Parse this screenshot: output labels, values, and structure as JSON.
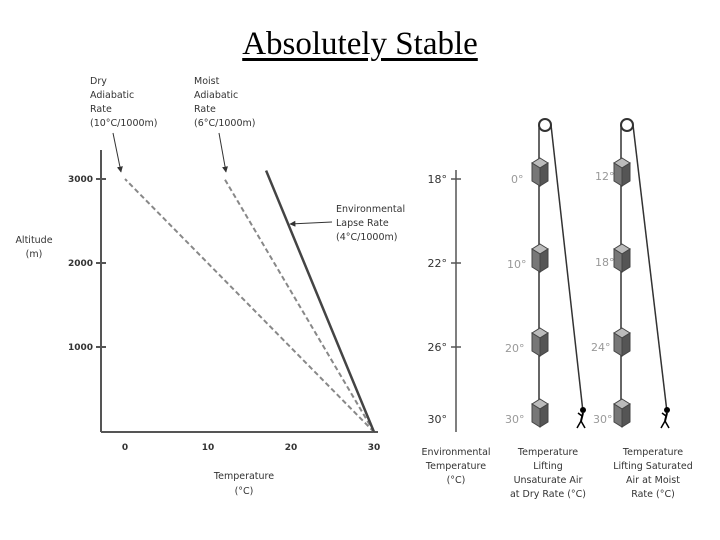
{
  "title": "Absolutely Stable",
  "labels": {
    "dry": [
      "Dry",
      "Adiabatic",
      "Rate",
      "(10°C/1000m)"
    ],
    "moist": [
      "Moist",
      "Adiabatic",
      "Rate",
      "(6°C/1000m)"
    ],
    "env": [
      "Environmental",
      "Lapse Rate",
      "(4°C/1000m)"
    ],
    "altitude": [
      "Altitude",
      "(m)"
    ],
    "temperature": [
      "Temperature",
      "(°C)"
    ],
    "col_env": [
      "Environmental",
      "Temperature",
      "(°C)"
    ],
    "col_dry": [
      "Temperature",
      "Lifting",
      "Unsaturate Air",
      "at Dry Rate (°C)"
    ],
    "col_moist": [
      "Temperature",
      "Lifting Saturated",
      "Air at Moist",
      "Rate (°C)"
    ]
  },
  "axes": {
    "y_ticks": [
      "3000",
      "2000",
      "1000"
    ],
    "x_ticks": [
      "0",
      "10",
      "20",
      "30"
    ]
  },
  "chart_data": {
    "type": "line",
    "xlabel": "Temperature (°C)",
    "ylabel": "Altitude (m)",
    "xlim": [
      -3,
      30
    ],
    "ylim": [
      0,
      3000
    ],
    "series": [
      {
        "name": "Dry Adiabatic Rate (10°C/1000m)",
        "style": "dashed",
        "x": [
          30,
          0
        ],
        "y": [
          0,
          3000
        ]
      },
      {
        "name": "Moist Adiabatic Rate (6°C/1000m)",
        "style": "dashed",
        "x": [
          30,
          12
        ],
        "y": [
          0,
          3000
        ]
      },
      {
        "name": "Environmental Lapse Rate (4°C/1000m)",
        "style": "solid",
        "x": [
          30,
          17
        ],
        "y": [
          0,
          3100
        ]
      }
    ]
  },
  "env_temps": [
    "18°",
    "22°",
    "26°",
    "30°"
  ],
  "dry_temps": [
    "0°",
    "10°",
    "20°",
    "30°"
  ],
  "moist_temps": [
    "12°",
    "18°",
    "24°",
    "30°"
  ],
  "colors": {
    "axis": "#555555",
    "parcel": "#555555",
    "faded_label": "#999999"
  }
}
